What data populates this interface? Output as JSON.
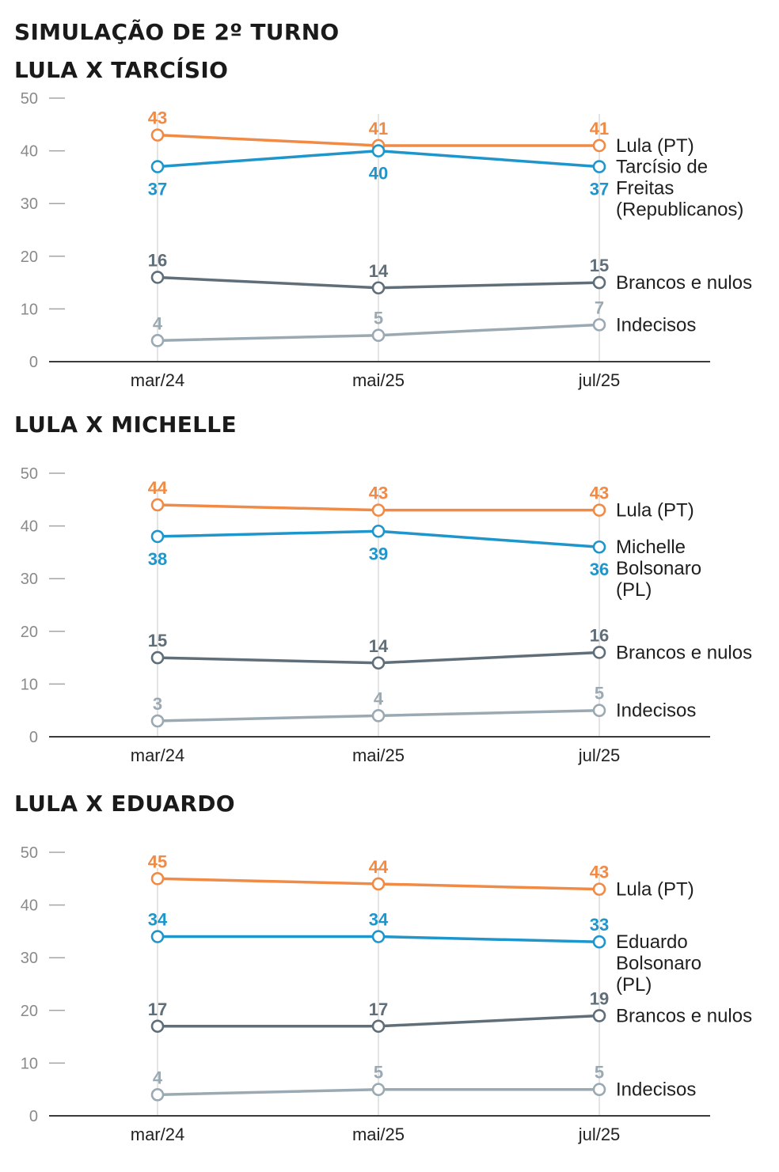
{
  "title": "SIMULAÇÃO DE 2º TURNO",
  "chart_data": [
    {
      "type": "line",
      "title": "LULA X TARCÍSIO",
      "categories": [
        "mar/24",
        "mai/25",
        "jul/25"
      ],
      "ylim": [
        0,
        50
      ],
      "yticks": [
        0,
        10,
        20,
        30,
        40,
        50
      ],
      "grid": false,
      "legend": "right",
      "series": [
        {
          "name": "Lula (PT)",
          "name_lines": [
            "Lula (PT)"
          ],
          "color": "#f08a45",
          "values": [
            43,
            41,
            41
          ],
          "label_pos": [
            "above",
            "above",
            "above"
          ]
        },
        {
          "name": "Tarcísio de Freitas (Republicanos)",
          "name_lines": [
            "Tarcísio de",
            "Freitas",
            "(Republicanos)"
          ],
          "color": "#1e96cc",
          "values": [
            37,
            40,
            37
          ],
          "label_pos": [
            "below",
            "below",
            "below"
          ]
        },
        {
          "name": "Brancos e nulos",
          "name_lines": [
            "Brancos e nulos"
          ],
          "color": "#5f6e78",
          "values": [
            16,
            14,
            15
          ],
          "label_pos": [
            "above",
            "above",
            "above"
          ]
        },
        {
          "name": "Indecisos",
          "name_lines": [
            "Indecisos"
          ],
          "color": "#9aa9b2",
          "values": [
            4,
            5,
            7
          ],
          "label_pos": [
            "above",
            "above",
            "above"
          ]
        }
      ]
    },
    {
      "type": "line",
      "title": "LULA X MICHELLE",
      "categories": [
        "mar/24",
        "mai/25",
        "jul/25"
      ],
      "ylim": [
        0,
        50
      ],
      "yticks": [
        0,
        10,
        20,
        30,
        40,
        50
      ],
      "grid": false,
      "legend": "right",
      "series": [
        {
          "name": "Lula (PT)",
          "name_lines": [
            "Lula (PT)"
          ],
          "color": "#f08a45",
          "values": [
            44,
            43,
            43
          ],
          "label_pos": [
            "above",
            "above",
            "above"
          ]
        },
        {
          "name": "Michelle Bolsonaro (PL)",
          "name_lines": [
            "Michelle",
            "Bolsonaro",
            "(PL)"
          ],
          "color": "#1e96cc",
          "values": [
            38,
            39,
            36
          ],
          "label_pos": [
            "below",
            "below",
            "below"
          ]
        },
        {
          "name": "Brancos e nulos",
          "name_lines": [
            "Brancos e nulos"
          ],
          "color": "#5f6e78",
          "values": [
            15,
            14,
            16
          ],
          "label_pos": [
            "above",
            "above",
            "above"
          ]
        },
        {
          "name": "Indecisos",
          "name_lines": [
            "Indecisos"
          ],
          "color": "#9aa9b2",
          "values": [
            3,
            4,
            5
          ],
          "label_pos": [
            "above",
            "above",
            "above"
          ]
        }
      ]
    },
    {
      "type": "line",
      "title": "LULA X EDUARDO",
      "categories": [
        "mar/24",
        "mai/25",
        "jul/25"
      ],
      "ylim": [
        0,
        50
      ],
      "yticks": [
        0,
        10,
        20,
        30,
        40,
        50
      ],
      "grid": false,
      "legend": "right",
      "series": [
        {
          "name": "Lula (PT)",
          "name_lines": [
            "Lula (PT)"
          ],
          "color": "#f08a45",
          "values": [
            45,
            44,
            43
          ],
          "label_pos": [
            "above",
            "above",
            "above"
          ]
        },
        {
          "name": "Eduardo Bolsonaro (PL)",
          "name_lines": [
            "Eduardo",
            "Bolsonaro",
            "(PL)"
          ],
          "color": "#1e96cc",
          "values": [
            34,
            34,
            33
          ],
          "label_pos": [
            "above",
            "above",
            "above"
          ]
        },
        {
          "name": "Brancos e nulos",
          "name_lines": [
            "Brancos e nulos"
          ],
          "color": "#5f6e78",
          "values": [
            17,
            17,
            19
          ],
          "label_pos": [
            "above",
            "above",
            "above"
          ]
        },
        {
          "name": "Indecisos",
          "name_lines": [
            "Indecisos"
          ],
          "color": "#9aa9b2",
          "values": [
            4,
            5,
            5
          ],
          "label_pos": [
            "above",
            "above",
            "above"
          ]
        }
      ]
    }
  ]
}
